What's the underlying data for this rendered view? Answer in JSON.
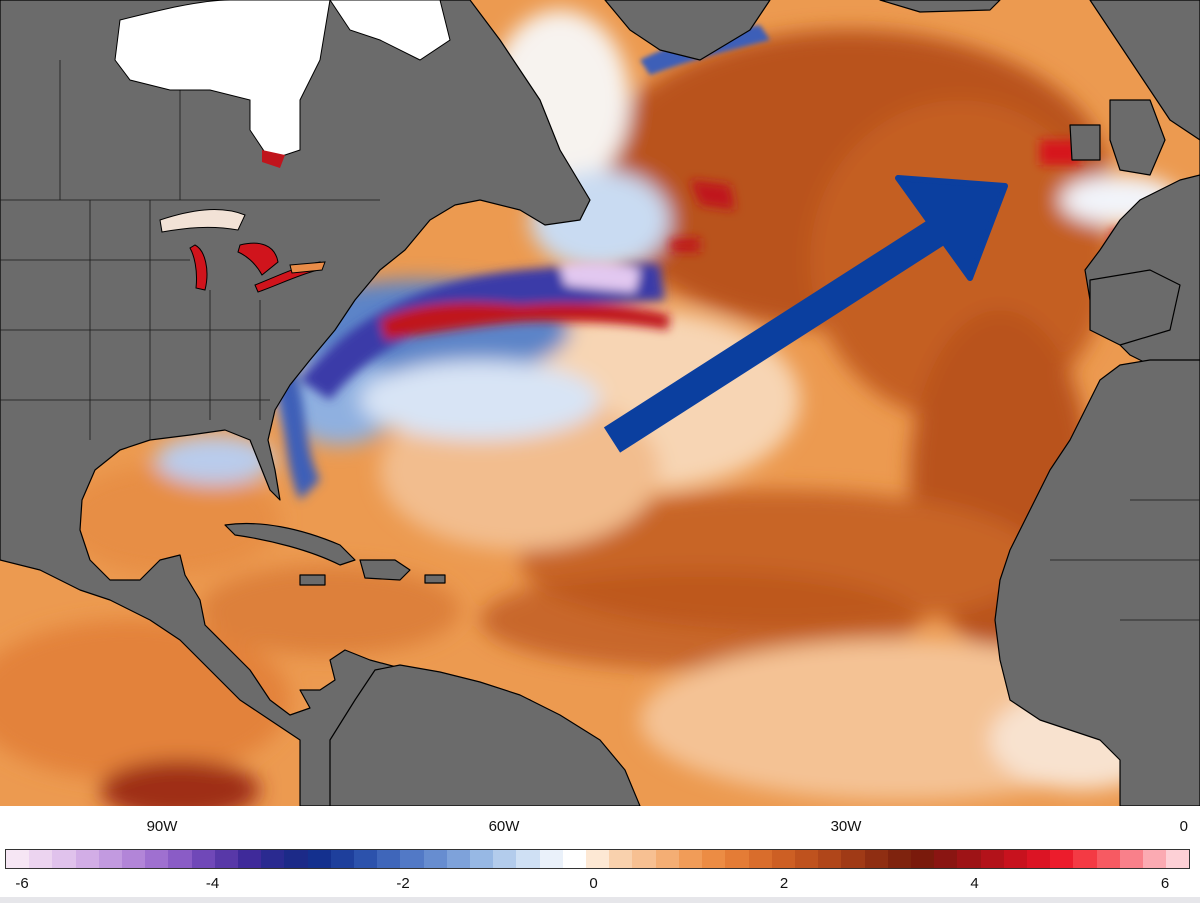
{
  "map": {
    "land_color": "#6b6b6b",
    "ice_color": "#ffffff",
    "coast_color": "#000000",
    "arrow_color": "#0b3f9f",
    "longitude_labels": [
      {
        "label": "90W",
        "lon": -90
      },
      {
        "label": "60W",
        "lon": -60
      },
      {
        "label": "30W",
        "lon": -30
      },
      {
        "label": "0",
        "lon": 0
      }
    ]
  },
  "colorbar": {
    "labels": [
      {
        "label": "-6",
        "value": -6
      },
      {
        "label": "-4",
        "value": -4
      },
      {
        "label": "-2",
        "value": -2
      },
      {
        "label": "0",
        "value": 0
      },
      {
        "label": "2",
        "value": 2
      },
      {
        "label": "4",
        "value": 4
      },
      {
        "label": "6",
        "value": 6
      }
    ],
    "colors": [
      "#f6e6f4",
      "#ecd4f0",
      "#e0c2ec",
      "#d2ade6",
      "#c29ae0",
      "#b285d8",
      "#9f70d0",
      "#8a5cc6",
      "#7048b8",
      "#5838a8",
      "#3f2a9a",
      "#2a2a90",
      "#1c2a88",
      "#14308e",
      "#1e3f9c",
      "#2c52ac",
      "#3f66ba",
      "#5279c6",
      "#678dd0",
      "#7ea2da",
      "#97b8e4",
      "#b3ccec",
      "#cfe0f4",
      "#eaf1fa",
      "#ffffff",
      "#fde8d4",
      "#f9d1ad",
      "#f7c092",
      "#f4ae74",
      "#f19c58",
      "#ec8c44",
      "#e47c36",
      "#d96d2c",
      "#cd5f24",
      "#bf521e",
      "#b0461a",
      "#a03a16",
      "#8f2e12",
      "#7f230e",
      "#7a1a0c",
      "#8a1512",
      "#9e1316",
      "#b3121a",
      "#c8121e",
      "#dc1424",
      "#ec1c2c",
      "#f43a44",
      "#f75a62",
      "#f9808a",
      "#fbaab2",
      "#fdd0d6"
    ]
  }
}
